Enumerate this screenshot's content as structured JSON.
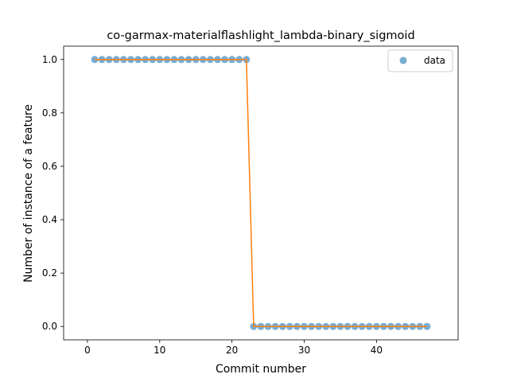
{
  "chart_data": {
    "type": "line",
    "title": "co-garmax-materialflashlight_lambda-binary_sigmoid",
    "xlabel": "Commit number",
    "ylabel": "Number of instance of a feature",
    "xlim": [
      -3.3,
      51.3
    ],
    "ylim": [
      -0.05,
      1.05
    ],
    "xticks": [
      0,
      10,
      20,
      30,
      40
    ],
    "yticks": [
      0.0,
      0.2,
      0.4,
      0.6,
      0.8,
      1.0
    ],
    "xtick_labels": [
      "0",
      "10",
      "20",
      "30",
      "40"
    ],
    "ytick_labels": [
      "0.0",
      "0.2",
      "0.4",
      "0.6",
      "0.8",
      "1.0"
    ],
    "grid": false,
    "legend_position": "top-right",
    "series": [
      {
        "name": "data",
        "kind": "scatter",
        "color": "#1f77b4",
        "x": [
          1,
          2,
          3,
          4,
          5,
          6,
          7,
          8,
          9,
          10,
          11,
          12,
          13,
          14,
          15,
          16,
          17,
          18,
          19,
          20,
          21,
          22,
          23,
          24,
          25,
          26,
          27,
          28,
          29,
          30,
          31,
          32,
          33,
          34,
          35,
          36,
          37,
          38,
          39,
          40,
          41,
          42,
          43,
          44,
          45,
          46,
          47
        ],
        "y": [
          1,
          1,
          1,
          1,
          1,
          1,
          1,
          1,
          1,
          1,
          1,
          1,
          1,
          1,
          1,
          1,
          1,
          1,
          1,
          1,
          1,
          1,
          0,
          0,
          0,
          0,
          0,
          0,
          0,
          0,
          0,
          0,
          0,
          0,
          0,
          0,
          0,
          0,
          0,
          0,
          0,
          0,
          0,
          0,
          0,
          0,
          0
        ]
      },
      {
        "kind": "line",
        "color": "#ff7f0e",
        "x": [
          1,
          2,
          3,
          4,
          5,
          6,
          7,
          8,
          9,
          10,
          11,
          12,
          13,
          14,
          15,
          16,
          17,
          18,
          19,
          20,
          21,
          22,
          23,
          24,
          25,
          26,
          27,
          28,
          29,
          30,
          31,
          32,
          33,
          34,
          35,
          36,
          37,
          38,
          39,
          40,
          41,
          42,
          43,
          44,
          45,
          46,
          47
        ],
        "y": [
          1,
          1,
          1,
          1,
          1,
          1,
          1,
          1,
          1,
          1,
          1,
          1,
          1,
          1,
          1,
          1,
          1,
          1,
          1,
          1,
          1,
          1,
          0,
          0,
          0,
          0,
          0,
          0,
          0,
          0,
          0,
          0,
          0,
          0,
          0,
          0,
          0,
          0,
          0,
          0,
          0,
          0,
          0,
          0,
          0,
          0,
          0
        ]
      }
    ]
  }
}
